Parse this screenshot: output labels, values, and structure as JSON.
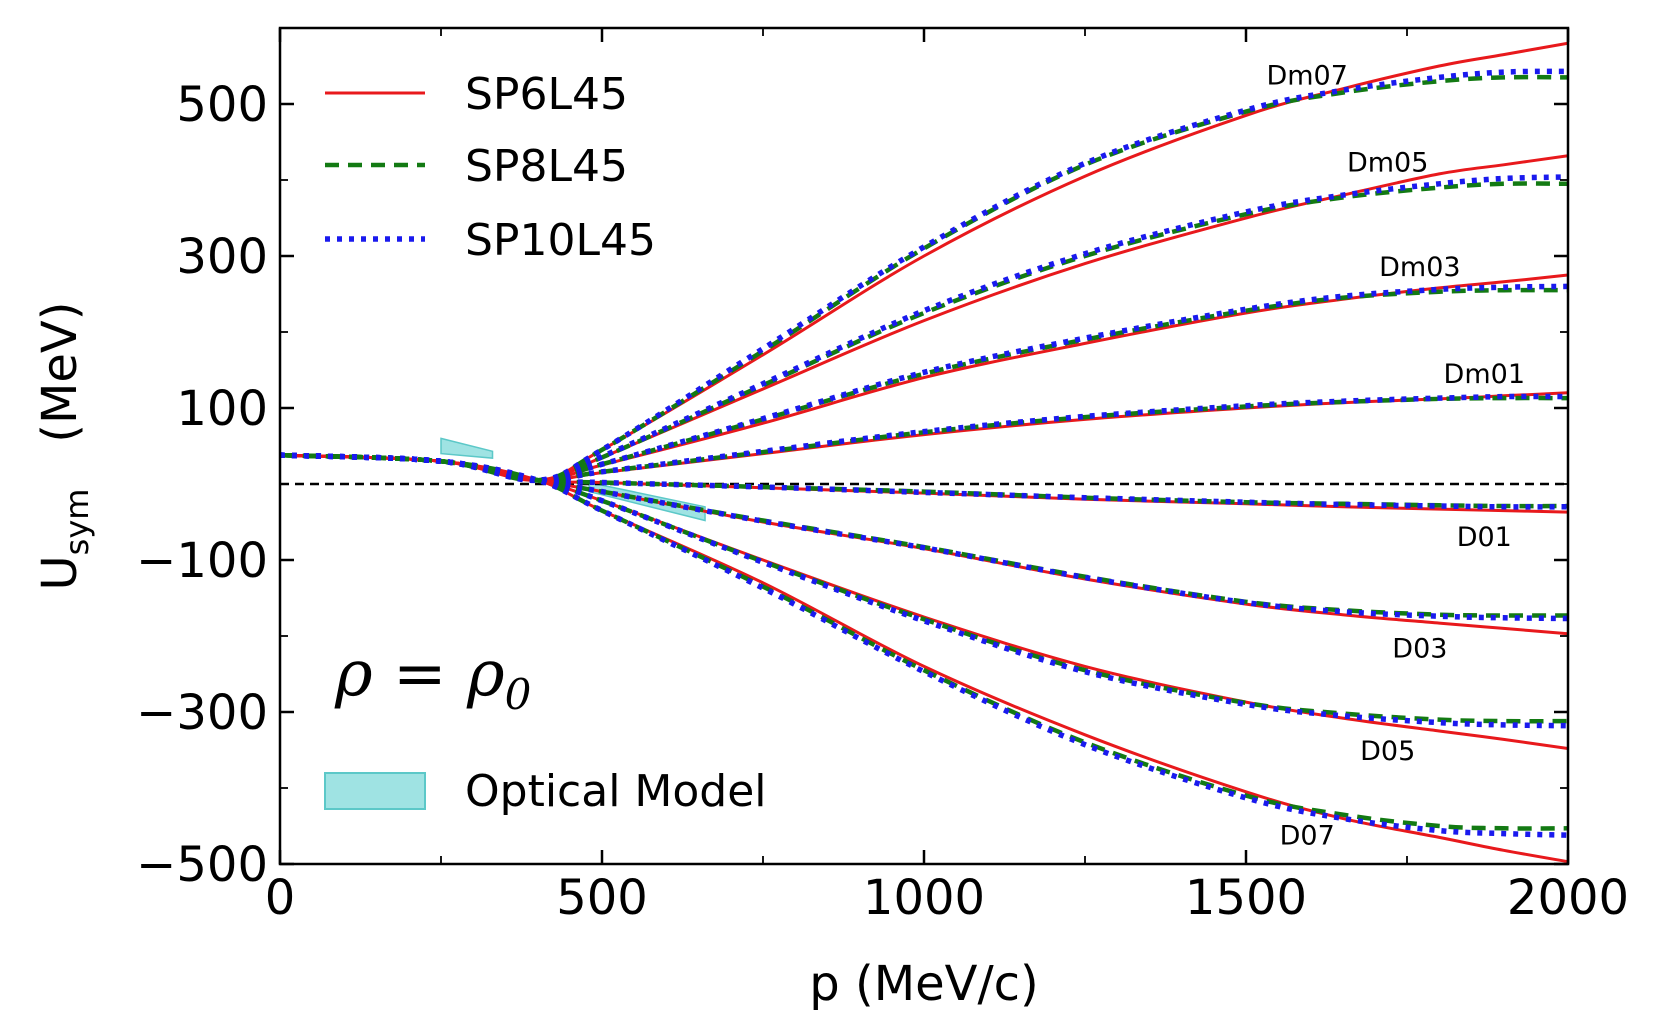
{
  "chart_data": {
    "type": "line",
    "xlabel": "p  (MeV/c)",
    "ylabel": "U",
    "ylabel_sub": "sym",
    "ylabel_unit": "(MeV)",
    "xlim": [
      0,
      2000
    ],
    "ylim": [
      -500,
      600
    ],
    "xticks": [
      0,
      500,
      1000,
      1500,
      2000
    ],
    "yticks": [
      -500,
      -300,
      -100,
      100,
      300,
      500
    ],
    "reference_line_y": 0,
    "annotation_main": "ρ = ρ",
    "annotation_sub": "0",
    "legend_position": "top-left",
    "colors": {
      "SP6L45": "#e8191c",
      "SP8L45": "#137a13",
      "SP10L45": "#1a1aee",
      "optical": "#7fdada"
    },
    "series": [
      {
        "name": "SP6L45",
        "style": "solid"
      },
      {
        "name": "SP8L45",
        "style": "dashed"
      },
      {
        "name": "SP10L45",
        "style": "dotted"
      }
    ],
    "optical_model": {
      "name": "Optical Model",
      "bands": [
        {
          "x": [
            250,
            330
          ],
          "upper": [
            60,
            43
          ],
          "lower": [
            40,
            34
          ]
        },
        {
          "x": [
            480,
            660
          ],
          "upper": [
            2,
            -30
          ],
          "lower": [
            -10,
            -48
          ]
        }
      ]
    },
    "groups": [
      {
        "label": "Dm07",
        "x": [
          0,
          250,
          400,
          500,
          750,
          1000,
          1250,
          1500,
          1650,
          1800,
          1900,
          2000
        ],
        "SP6L45": [
          38,
          30,
          5,
          45,
          170,
          300,
          405,
          485,
          520,
          550,
          565,
          580
        ],
        "SP8L45": [
          38,
          30,
          5,
          45,
          175,
          310,
          420,
          490,
          515,
          530,
          535,
          535
        ],
        "SP10L45": [
          38,
          30,
          5,
          45,
          178,
          312,
          422,
          492,
          518,
          535,
          542,
          543
        ]
      },
      {
        "label": "Dm05",
        "x": [
          0,
          250,
          400,
          500,
          750,
          1000,
          1250,
          1500,
          1650,
          1800,
          1900,
          2000
        ],
        "SP6L45": [
          38,
          30,
          5,
          35,
          125,
          215,
          290,
          350,
          380,
          408,
          420,
          432
        ],
        "SP8L45": [
          38,
          30,
          5,
          35,
          130,
          225,
          300,
          355,
          377,
          390,
          395,
          395
        ],
        "SP10L45": [
          38,
          30,
          5,
          36,
          132,
          228,
          303,
          358,
          380,
          395,
          402,
          404
        ]
      },
      {
        "label": "Dm03",
        "x": [
          0,
          250,
          400,
          500,
          750,
          1000,
          1250,
          1500,
          1650,
          1800,
          1900,
          2000
        ],
        "SP6L45": [
          38,
          30,
          5,
          25,
          80,
          140,
          185,
          225,
          243,
          258,
          266,
          275
        ],
        "SP8L45": [
          38,
          30,
          5,
          26,
          85,
          145,
          190,
          228,
          245,
          253,
          255,
          255
        ],
        "SP10L45": [
          38,
          30,
          5,
          26,
          86,
          147,
          192,
          230,
          247,
          256,
          259,
          260
        ]
      },
      {
        "label": "Dm01",
        "x": [
          0,
          250,
          400,
          500,
          750,
          1000,
          1250,
          1500,
          1650,
          1800,
          1900,
          2000
        ],
        "SP6L45": [
          38,
          30,
          5,
          15,
          40,
          65,
          85,
          100,
          107,
          112,
          116,
          120
        ],
        "SP8L45": [
          38,
          30,
          5,
          16,
          42,
          68,
          88,
          102,
          108,
          112,
          113,
          113
        ],
        "SP10L45": [
          38,
          30,
          5,
          16,
          43,
          69,
          89,
          103,
          109,
          113,
          115,
          115
        ]
      },
      {
        "label": "D01",
        "x": [
          0,
          250,
          400,
          500,
          750,
          1000,
          1250,
          1500,
          1650,
          1800,
          1900,
          2000
        ],
        "SP6L45": [
          38,
          30,
          5,
          2,
          -5,
          -12,
          -20,
          -26,
          -30,
          -33,
          -35,
          -37
        ],
        "SP8L45": [
          38,
          30,
          5,
          2,
          -4,
          -10,
          -18,
          -24,
          -26,
          -28,
          -29,
          -29
        ],
        "SP10L45": [
          38,
          30,
          5,
          2,
          -4,
          -11,
          -18,
          -24,
          -27,
          -29,
          -30,
          -30
        ]
      },
      {
        "label": "D03",
        "x": [
          0,
          250,
          400,
          500,
          750,
          1000,
          1250,
          1500,
          1650,
          1800,
          1900,
          2000
        ],
        "SP6L45": [
          38,
          30,
          5,
          -10,
          -50,
          -85,
          -125,
          -158,
          -172,
          -183,
          -190,
          -197
        ],
        "SP8L45": [
          38,
          30,
          5,
          -10,
          -48,
          -83,
          -122,
          -155,
          -166,
          -172,
          -173,
          -173
        ],
        "SP10L45": [
          38,
          30,
          5,
          -10,
          -49,
          -84,
          -123,
          -156,
          -168,
          -174,
          -176,
          -177
        ]
      },
      {
        "label": "D05",
        "x": [
          0,
          250,
          400,
          500,
          750,
          1000,
          1250,
          1500,
          1650,
          1800,
          1900,
          2000
        ],
        "SP6L45": [
          38,
          30,
          5,
          -22,
          -100,
          -175,
          -240,
          -287,
          -308,
          -325,
          -336,
          -348
        ],
        "SP8L45": [
          38,
          30,
          5,
          -22,
          -102,
          -178,
          -245,
          -288,
          -302,
          -310,
          -312,
          -312
        ],
        "SP10L45": [
          38,
          30,
          5,
          -22,
          -103,
          -180,
          -247,
          -290,
          -305,
          -314,
          -317,
          -318
        ]
      },
      {
        "label": "D07",
        "x": [
          0,
          250,
          400,
          500,
          750,
          1000,
          1250,
          1500,
          1650,
          1800,
          1900,
          2000
        ],
        "SP6L45": [
          38,
          30,
          5,
          -35,
          -130,
          -240,
          -330,
          -405,
          -440,
          -465,
          -482,
          -497
        ],
        "SP8L45": [
          38,
          30,
          5,
          -35,
          -135,
          -245,
          -340,
          -410,
          -435,
          -450,
          -453,
          -453
        ],
        "SP10L45": [
          38,
          30,
          5,
          -35,
          -137,
          -247,
          -343,
          -413,
          -440,
          -456,
          -460,
          -462
        ]
      }
    ]
  }
}
